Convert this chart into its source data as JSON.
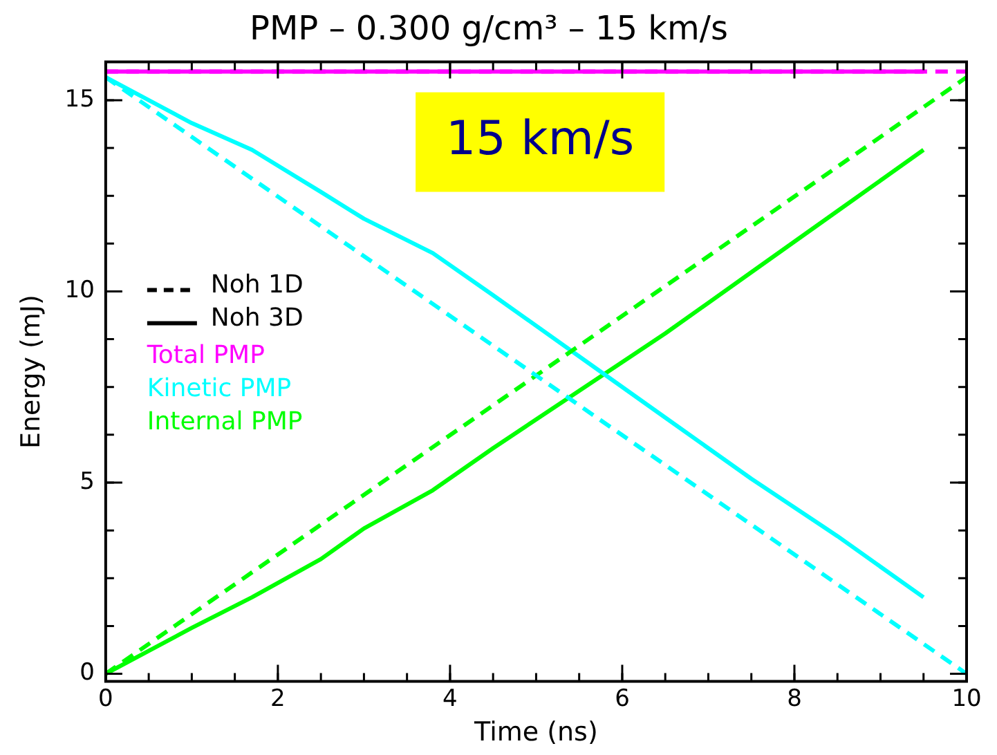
{
  "chart_data": {
    "type": "line",
    "title": "PMP – 0.300 g/cm³ – 15 km/s",
    "xlabel": "Time (ns)",
    "ylabel": "Energy (mJ)",
    "xlim": [
      0,
      10
    ],
    "xticks": [
      0,
      2,
      4,
      6,
      8,
      10
    ],
    "ylim": [
      -0.2,
      16
    ],
    "yticks": [
      0,
      5,
      10,
      15
    ],
    "grid": false,
    "legend": "left",
    "marker": "none",
    "annotations": [
      "15 km/s",
      "Noh 1D",
      "Noh 3D"
    ],
    "series": [
      {
        "color": "#ff00ff",
        "line_style": "dashed",
        "x": [
          0,
          10
        ],
        "values": [
          15.75,
          15.75
        ]
      },
      {
        "color": "#00ffff",
        "line_style": "dashed",
        "x": [
          0,
          10
        ],
        "values": [
          15.6,
          0
        ]
      },
      {
        "color": "#00ff00",
        "line_style": "dashed",
        "x": [
          0,
          10
        ],
        "values": [
          0,
          15.6
        ]
      },
      {
        "name": "Total PMP",
        "color": "#ff00ff",
        "line_style": "solid",
        "x": [
          0,
          9.5
        ],
        "values": [
          15.75,
          15.75
        ]
      },
      {
        "name": "Kinetic PMP",
        "color": "#00ffff",
        "line_style": "solid",
        "x": [
          0,
          0.5,
          1,
          1.7,
          2.5,
          3,
          3.8,
          4.5,
          5.5,
          6.5,
          7.5,
          8.5,
          9.5
        ],
        "values": [
          15.6,
          15.0,
          14.4,
          13.7,
          12.6,
          11.9,
          11.0,
          9.9,
          8.3,
          6.7,
          5.1,
          3.6,
          2.0
        ]
      },
      {
        "name": "Internal PMP",
        "color": "#00ff00",
        "line_style": "solid",
        "x": [
          0,
          0.5,
          1,
          1.7,
          2.5,
          3,
          3.8,
          4.5,
          5.5,
          6.5,
          7.5,
          8.5,
          9.5
        ],
        "values": [
          0,
          0.6,
          1.2,
          2.0,
          3.0,
          3.8,
          4.8,
          5.9,
          7.4,
          8.9,
          10.5,
          12.1,
          13.7
        ]
      }
    ]
  }
}
